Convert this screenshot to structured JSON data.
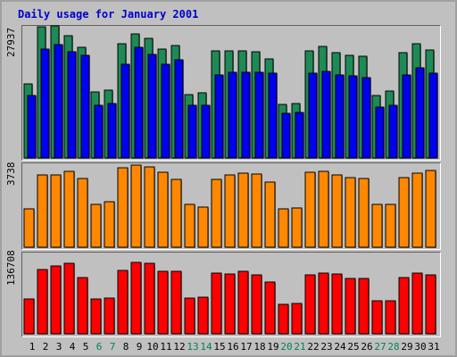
{
  "chart_data": {
    "type": "bar",
    "title": "Daily usage for January 2001",
    "categories": [
      "1",
      "2",
      "3",
      "4",
      "5",
      "6",
      "7",
      "8",
      "9",
      "10",
      "11",
      "12",
      "13",
      "14",
      "15",
      "16",
      "17",
      "18",
      "19",
      "20",
      "21",
      "22",
      "23",
      "24",
      "25",
      "26",
      "27",
      "28",
      "29",
      "30",
      "31"
    ],
    "weekend_days": [
      "6",
      "7",
      "13",
      "14",
      "20",
      "21",
      "27",
      "28"
    ],
    "panels": [
      {
        "ylabel": "27937",
        "ymax": 27937,
        "series": [
          {
            "color": "#1e8a55",
            "values": [
              15700,
              27700,
              28000,
              25800,
              23500,
              13900,
              14300,
              24100,
              26200,
              25300,
              23100,
              23700,
              13400,
              13700,
              22700,
              22600,
              22600,
              22500,
              21000,
              11300,
              11600,
              22600,
              23600,
              22300,
              21700,
              21500,
              13300,
              14100,
              22200,
              24100,
              22900
            ]
          },
          {
            "color": "#0000ee",
            "values": [
              13300,
              23100,
              24000,
              22400,
              21700,
              11100,
              11500,
              19800,
              23400,
              21900,
              19900,
              20800,
              11100,
              11200,
              17600,
              18200,
              18200,
              18100,
              17900,
              9500,
              9600,
              18000,
              18400,
              17500,
              17300,
              16900,
              10800,
              11200,
              17500,
              19000,
              17900
            ]
          }
        ]
      },
      {
        "ylabel": "3738",
        "ymax": 3738,
        "series": [
          {
            "color": "#ff8800",
            "values": [
              1710,
              3270,
              3240,
              3400,
              3100,
              1920,
              2050,
              3560,
              3690,
              3600,
              3380,
              3060,
              1940,
              1790,
              3060,
              3240,
              3340,
              3280,
              2930,
              1740,
              1770,
              3390,
              3420,
              3240,
              3140,
              3100,
              1930,
              1920,
              3130,
              3320,
              3440
            ]
          }
        ]
      },
      {
        "ylabel": "136708",
        "ymax": 136708,
        "series": [
          {
            "color": "#ff0000",
            "values": [
              58500,
              109000,
              115000,
              120000,
              95500,
              59500,
              61000,
              108000,
              121000,
              120000,
              106000,
              106000,
              60500,
              62000,
              104000,
              102000,
              106000,
              101000,
              87500,
              49500,
              51500,
              100000,
              104000,
              102000,
              94000,
              94000,
              56500,
              56500,
              95000,
              104000,
              101000
            ]
          }
        ]
      }
    ],
    "xlabel": "",
    "grid": false,
    "legend": "none"
  }
}
